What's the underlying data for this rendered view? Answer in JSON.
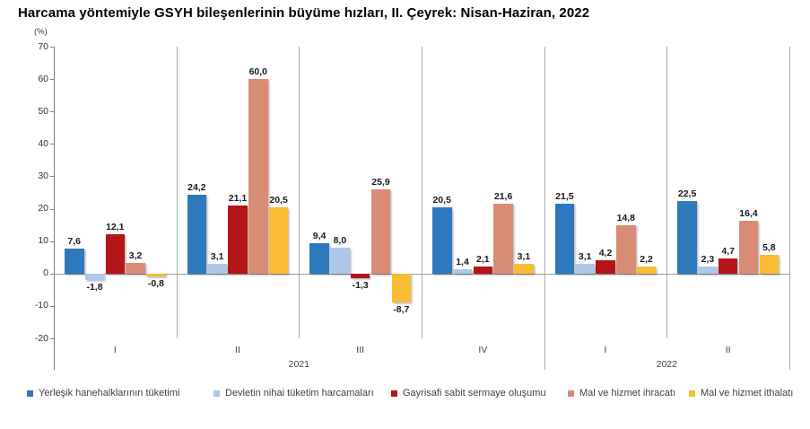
{
  "title": "Harcama yöntemiyle GSYH bileşenlerinin büyüme hızları, II. Çeyrek: Nisan-Haziran, 2022",
  "chart_data": {
    "type": "bar",
    "title": "Harcama yöntemiyle GSYH bileşenlerinin büyüme hızları, II. Çeyrek: Nisan-Haziran, 2022",
    "unit_label": "(%)",
    "categories": [
      "I",
      "II",
      "III",
      "IV",
      "I",
      "II"
    ],
    "category_groups": [
      {
        "label": "2021",
        "span": 4
      },
      {
        "label": "2022",
        "span": 2
      }
    ],
    "series": [
      {
        "name": "Yerleşik hanehalklarının tüketimi",
        "color": "#2E78BE",
        "values": [
          7.6,
          24.2,
          9.4,
          20.5,
          21.5,
          22.5
        ]
      },
      {
        "name": "Devletin nihai tüketim harcamaları",
        "color": "#AEC7E8",
        "values": [
          -1.8,
          3.1,
          8.0,
          1.4,
          3.1,
          2.3
        ]
      },
      {
        "name": "Gayrisafi sabit sermaye oluşumu",
        "color": "#B41518",
        "values": [
          12.1,
          21.1,
          -1.3,
          2.1,
          4.2,
          4.7
        ]
      },
      {
        "name": "Mal ve hizmet ihracatı",
        "color": "#D98C75",
        "values": [
          3.2,
          60.0,
          25.9,
          21.6,
          14.8,
          16.4
        ]
      },
      {
        "name": "Mal ve hizmet ithalatı",
        "color": "#F8BD35",
        "values": [
          -0.8,
          20.5,
          -8.7,
          3.1,
          2.2,
          5.8
        ]
      }
    ],
    "ylim": [
      -20,
      70
    ],
    "ytick_step": 10,
    "decimal_separator": ",",
    "grid": false,
    "legend_position": "bottom",
    "axis_color": "#808080",
    "separator_color": "#ababab"
  }
}
